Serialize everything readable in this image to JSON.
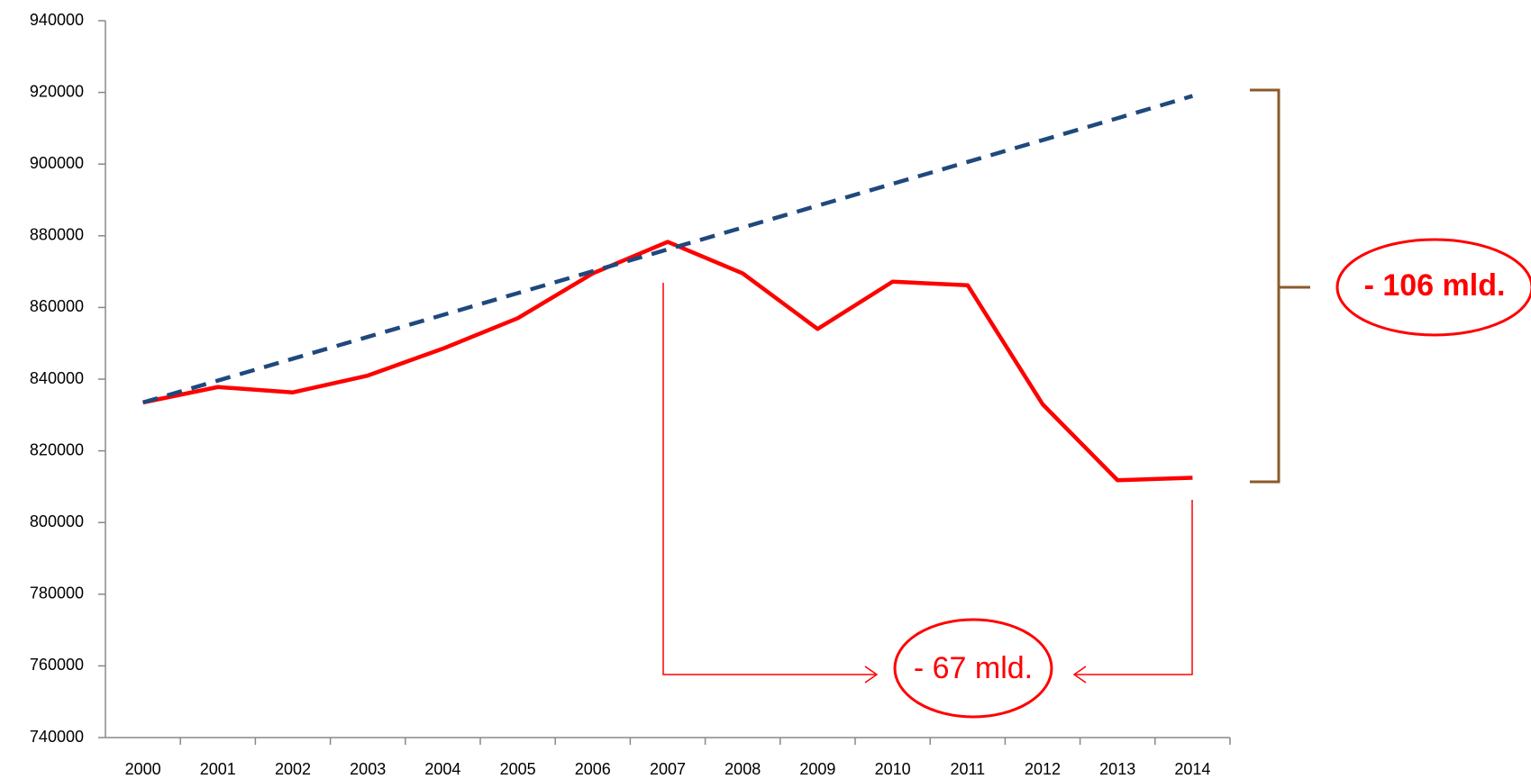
{
  "chart_data": {
    "type": "line",
    "categories": [
      "2000",
      "2001",
      "2002",
      "2003",
      "2004",
      "2005",
      "2006",
      "2007",
      "2008",
      "2009",
      "2010",
      "2011",
      "2012",
      "2013",
      "2014"
    ],
    "series": [
      {
        "color": "#ff0000",
        "dashed": false,
        "values": [
          833500,
          837800,
          836300,
          841000,
          848500,
          857000,
          869500,
          878300,
          869500,
          854000,
          867200,
          866200,
          833000,
          811800,
          812500
        ]
      },
      {
        "color": "#1f497d",
        "dashed": true,
        "values": [
          833500,
          839600,
          845700,
          851800,
          857900,
          864000,
          870100,
          876200,
          882300,
          888400,
          894500,
          900600,
          906700,
          912800,
          919000
        ]
      }
    ],
    "ylim": [
      740000,
      940000
    ],
    "yticks": [
      740000,
      760000,
      780000,
      800000,
      820000,
      840000,
      860000,
      880000,
      900000,
      920000,
      940000
    ],
    "grid": false,
    "annotations": [
      "- 106 mld.",
      "- 67 mld."
    ]
  }
}
